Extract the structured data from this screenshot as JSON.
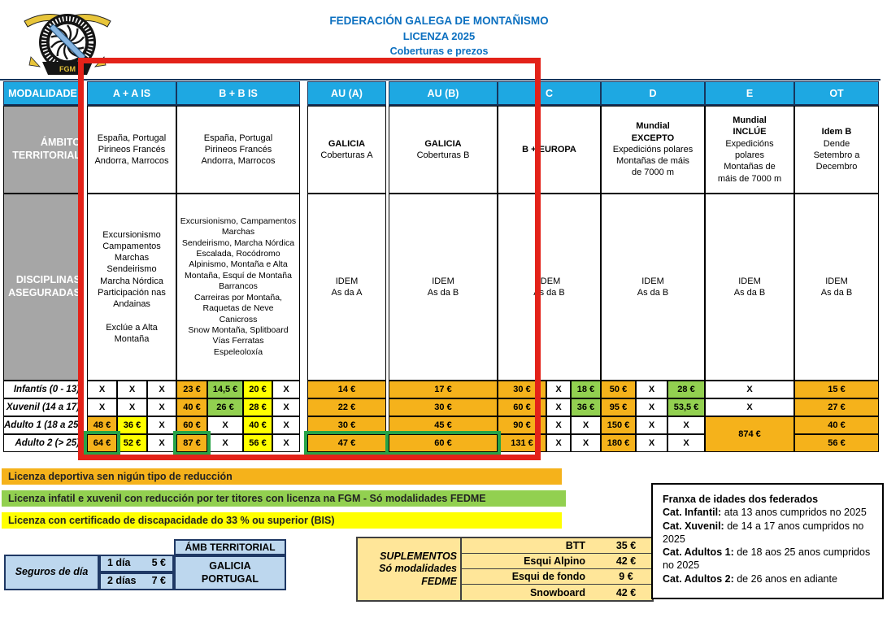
{
  "header": {
    "title_line1": "FEDERACIÓN GALEGA DE MONTAÑISMO",
    "title_line2": "LICENZA 2025",
    "title_line3": "Coberturas e prezos",
    "logo_banner": "FGM"
  },
  "table": {
    "corner_label": "MODALIDADE",
    "col_headers": [
      "A + A IS",
      "B + B IS",
      "AU (A)",
      "AU (B)",
      "C",
      "D",
      "E",
      "OT"
    ],
    "ambito": {
      "label": "ÁMBITO\nTERRITORIAL",
      "a": "España, Portugal\nPirineos Francés\nAndorra, Marrocos",
      "b": "España, Portugal\nPirineos Francés\nAndorra, Marrocos",
      "aua_bold": "GALICIA",
      "aua_sub": "Coberturas A",
      "aub_bold": "GALICIA",
      "aub_sub": "Coberturas B",
      "c": "B + EUROPA",
      "d_bold": "Mundial\nEXCEPTO",
      "d_sub": "Expedicións polares\nMontañas de máis\nde 7000 m",
      "e_bold": "Mundial\nINCLÚE",
      "e_sub": "Expedicións\npolares\nMontañas de\nmáis de 7000 m",
      "ot_bold": "Idem B",
      "ot_sub": "Dende\nSetembro a\nDecembro"
    },
    "disciplinas": {
      "label": "DISCIPLINAS\nASEGURADAS",
      "a": "Excursionismo\nCampamentos\nMarchas\nSendeirismo\nMarcha Nórdica\nParticipación nas\nAndainas\n\nExclúe a Alta\nMontaña",
      "b": "Excursionismo, Campamentos\nMarchas\nSendeirismo, Marcha Nórdica\nEscalada, Rocódromo\nAlpinismo, Montaña e Alta\nMontaña, Esquí de Montaña\nBarrancos\nCarreiras por Montaña,\nRaquetas de Neve\nCanicross\nSnow Montaña, Splitboard\nVías Ferratas\nEspeleoloxía",
      "aua": "IDEM\nAs da A",
      "aub": "IDEM\nAs da B",
      "c": "IDEM\nAs da B",
      "d": "IDEM\nAs da B",
      "e": "IDEM\nAs da B",
      "ot": "IDEM\nAs da B"
    },
    "price_rows": [
      {
        "label": "Infantís (0 - 13)",
        "cells": [
          {
            "t": "X",
            "bg": "w"
          },
          {
            "t": "X",
            "bg": "w"
          },
          {
            "t": "X",
            "bg": "w"
          },
          {
            "t": "23 €",
            "bg": "o"
          },
          {
            "t": "14,5 €",
            "bg": "g"
          },
          {
            "t": "20 €",
            "bg": "y"
          },
          {
            "t": "X",
            "bg": "w"
          },
          {
            "t": "14 €",
            "bg": "o"
          },
          {
            "t": "17 €",
            "bg": "o"
          },
          {
            "t": "30 €",
            "bg": "o"
          },
          {
            "t": "X",
            "bg": "w"
          },
          {
            "t": "18 €",
            "bg": "g"
          },
          {
            "t": "50 €",
            "bg": "o"
          },
          {
            "t": "X",
            "bg": "w"
          },
          {
            "t": "28 €",
            "bg": "g"
          },
          {
            "t": "X",
            "bg": "w"
          },
          {
            "t": "15 €",
            "bg": "o"
          }
        ]
      },
      {
        "label": "Xuvenil (14 a 17)",
        "cells": [
          {
            "t": "X",
            "bg": "w"
          },
          {
            "t": "X",
            "bg": "w"
          },
          {
            "t": "X",
            "bg": "w"
          },
          {
            "t": "40 €",
            "bg": "o"
          },
          {
            "t": "26 €",
            "bg": "g"
          },
          {
            "t": "28 €",
            "bg": "y"
          },
          {
            "t": "X",
            "bg": "w"
          },
          {
            "t": "22 €",
            "bg": "o"
          },
          {
            "t": "30 €",
            "bg": "o"
          },
          {
            "t": "60 €",
            "bg": "o"
          },
          {
            "t": "X",
            "bg": "w"
          },
          {
            "t": "36 €",
            "bg": "g"
          },
          {
            "t": "95 €",
            "bg": "o"
          },
          {
            "t": "X",
            "bg": "w"
          },
          {
            "t": "53,5 €",
            "bg": "g"
          },
          {
            "t": "X",
            "bg": "w"
          },
          {
            "t": "27 €",
            "bg": "o"
          }
        ]
      },
      {
        "label": "Adulto 1 (18 a 25)",
        "cells": [
          {
            "t": "48 €",
            "bg": "o"
          },
          {
            "t": "36 €",
            "bg": "y"
          },
          {
            "t": "X",
            "bg": "w"
          },
          {
            "t": "60 €",
            "bg": "o"
          },
          {
            "t": "X",
            "bg": "w"
          },
          {
            "t": "40 €",
            "bg": "y"
          },
          {
            "t": "X",
            "bg": "w"
          },
          {
            "t": "30 €",
            "bg": "o"
          },
          {
            "t": "45 €",
            "bg": "o"
          },
          {
            "t": "90 €",
            "bg": "o"
          },
          {
            "t": "X",
            "bg": "w"
          },
          {
            "t": "X",
            "bg": "w"
          },
          {
            "t": "150 €",
            "bg": "o"
          },
          {
            "t": "X",
            "bg": "w"
          },
          {
            "t": "X",
            "bg": "w"
          },
          {
            "t": "874 €",
            "bg": "o",
            "span": 2
          },
          {
            "t": "40 €",
            "bg": "o"
          }
        ]
      },
      {
        "label": "Adulto 2 (> 25)",
        "cells": [
          {
            "t": "64 €",
            "bg": "o",
            "hl": true
          },
          {
            "t": "52 €",
            "bg": "y"
          },
          {
            "t": "X",
            "bg": "w"
          },
          {
            "t": "87 €",
            "bg": "o",
            "hl": true
          },
          {
            "t": "X",
            "bg": "w"
          },
          {
            "t": "56 €",
            "bg": "y"
          },
          {
            "t": "X",
            "bg": "w"
          },
          {
            "t": "47 €",
            "bg": "o",
            "hl": true
          },
          {
            "t": "60 €",
            "bg": "o",
            "hl": true
          },
          {
            "t": "131 €",
            "bg": "o"
          },
          {
            "t": "X",
            "bg": "w"
          },
          {
            "t": "X",
            "bg": "w"
          },
          {
            "t": "180 €",
            "bg": "o"
          },
          {
            "t": "X",
            "bg": "w"
          },
          {
            "t": "X",
            "bg": "w"
          },
          {
            "t": "",
            "bg": "sp"
          },
          {
            "t": "56 €",
            "bg": "o"
          }
        ]
      }
    ]
  },
  "legend": [
    {
      "text": "Licenza deportiva sen nigún tipo de reducción",
      "color": "orange"
    },
    {
      "text": "Licenza infatil e xuvenil con reducción por ter titores con licenza na FGM - Só modalidades FEDME",
      "color": "green"
    },
    {
      "text": "Licenza con certificado de discapacidade do 33 % ou superior (BIS)",
      "color": "yellow"
    }
  ],
  "seguros": {
    "title": "Seguros de día",
    "rows": [
      {
        "label": "1 día",
        "price": "5 €"
      },
      {
        "label": "2 días",
        "price": "7 €"
      }
    ],
    "amb_header": "ÁMB TERRITORIAL",
    "amb_value": "GALICIA\nPORTUGAL"
  },
  "suplementos": {
    "title": "SUPLEMENTOS\nSó modalidades\nFEDME",
    "rows": [
      {
        "label": "BTT",
        "price": "35 €"
      },
      {
        "label": "Esqui Alpino",
        "price": "42 €"
      },
      {
        "label": "Esqui de fondo",
        "price": "9 €"
      },
      {
        "label": "Snowboard",
        "price": "42 €"
      }
    ]
  },
  "franxa": {
    "title": "Franxa de idades dos federados",
    "items": [
      {
        "label": "Cat. Infantil:",
        "text": " ata 13 anos cumpridos no 2025"
      },
      {
        "label": "Cat. Xuvenil:",
        "text": " de 14 a 17 anos cumpridos no 2025"
      },
      {
        "label": "Cat. Adultos 1:",
        "text": " de 18 aos 25 anos cumpridos no 2025"
      },
      {
        "label": "Cat. Adultos 2:",
        "text": "  de  26 anos en adiante"
      }
    ]
  },
  "colors": {
    "header_cyan": "#1ea8e2",
    "cell_orange": "#f5b21b",
    "cell_yellow": "#ffff00",
    "cell_green": "#92d050",
    "cell_gray": "#a6a6a6",
    "highlight_green": "#27a347",
    "annotation_red": "#e32219",
    "seguros_blue": "#bdd7ee",
    "suplementos_tan": "#ffe699",
    "title_blue": "#0c70c0"
  }
}
